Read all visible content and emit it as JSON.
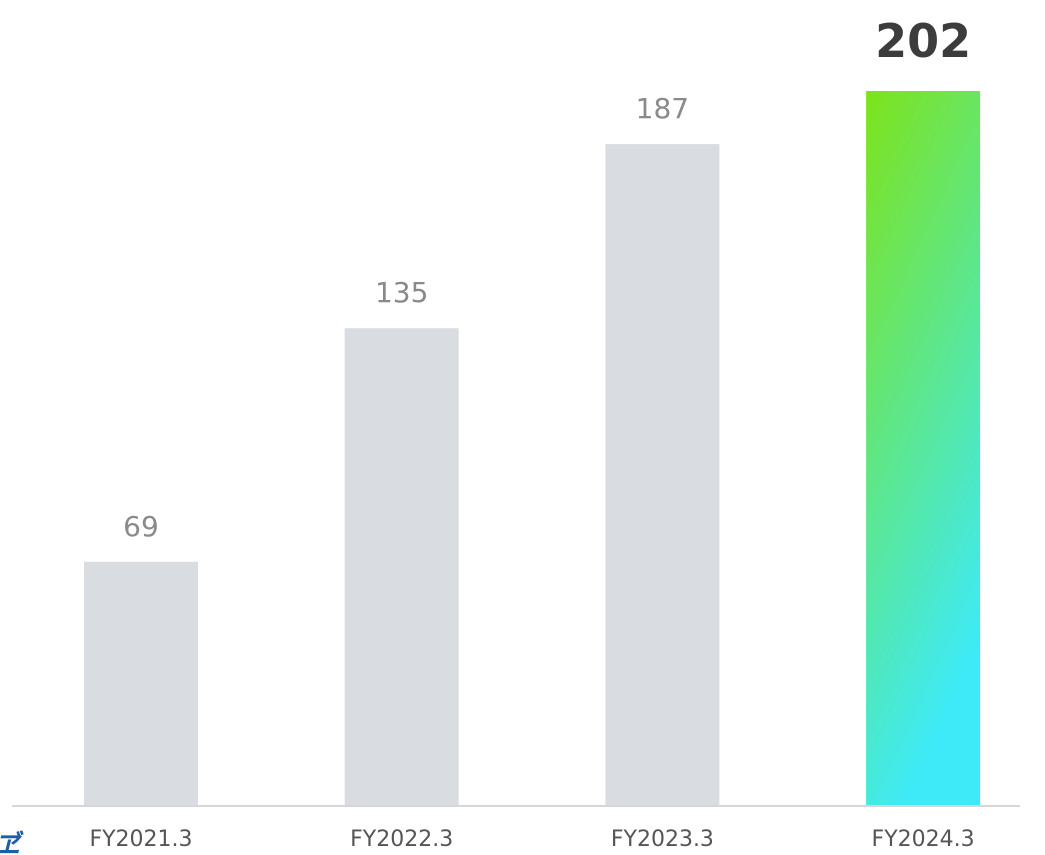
{
  "chart_data": {
    "type": "bar",
    "categories": [
      "FY2021.3",
      "FY2022.3",
      "FY2023.3",
      "FY2024.3"
    ],
    "values": [
      69,
      135,
      187,
      202
    ],
    "value_labels": [
      "69",
      "135",
      "187",
      "202"
    ],
    "highlight_index": 3,
    "title": "",
    "xlabel": "",
    "ylabel": "",
    "ylim": [
      0,
      202
    ],
    "grid": false,
    "legend": "none",
    "colors": {
      "bar": "#d9dde2",
      "highlight_top": "#7ee31a",
      "highlight_bottom": "#3eeaf8",
      "axis": "#d6d6d6"
    }
  },
  "corner_logo": {
    "icon": "brand-logo-fragment-icon",
    "color": "#1a5fa8"
  }
}
